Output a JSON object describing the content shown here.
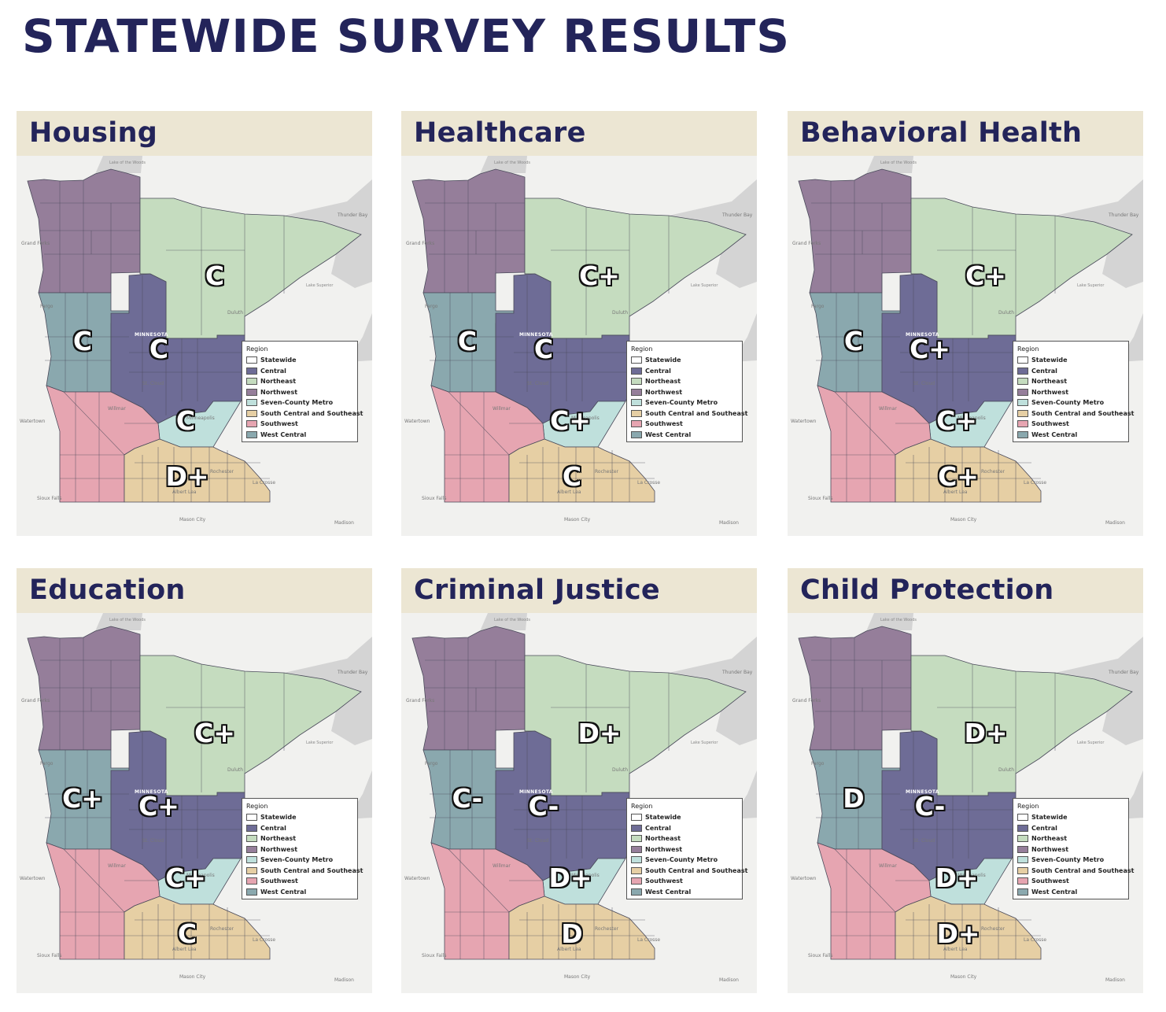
{
  "title": "STATEWIDE SURVEY RESULTS",
  "map_labels": {
    "lake_of_the_woods": "Lake of the Woods",
    "thunder_bay": "Thunder Bay",
    "grand_forks": "Grand Forks",
    "lake_superior": "Lake Superior",
    "fargo": "Fargo",
    "duluth": "Duluth",
    "minnesota": "MINNESOTA",
    "st_cloud": "St. Cloud",
    "willmar": "Willmar",
    "watertown": "Watertown",
    "minneapolis": "Minneapolis",
    "rochester": "Rochester",
    "la_crosse": "La Crosse",
    "albert_lea": "Albert Lea",
    "sioux_falls": "Sioux Falls",
    "mason_city": "Mason City",
    "madison": "Madison"
  },
  "legend": {
    "title": "Region",
    "items": [
      {
        "label": "Statewide",
        "color": "#ffffff"
      },
      {
        "label": "Central",
        "color": "#6e6c96"
      },
      {
        "label": "Northeast",
        "color": "#c5dcbf"
      },
      {
        "label": "Northwest",
        "color": "#957e9a"
      },
      {
        "label": "Seven-County Metro",
        "color": "#bfe0dc"
      },
      {
        "label": "South Central and Southeast",
        "color": "#e6cfa4"
      },
      {
        "label": "Southwest",
        "color": "#e6a5b1"
      },
      {
        "label": "West Central",
        "color": "#8aa8ae"
      }
    ]
  },
  "region_colors": {
    "northwest": "#957e9a",
    "northeast": "#c5dcbf",
    "west_central": "#8aa8ae",
    "central": "#6e6c96",
    "metro": "#bfe0dc",
    "southwest": "#e6a5b1",
    "south_central_southeast": "#e6cfa4",
    "title_color": "#23245a",
    "header_bg": "#ece6d3"
  },
  "panels": [
    {
      "title": "Housing",
      "grades": {
        "northeast": "C",
        "west_central": "C",
        "central": "C",
        "metro": "C",
        "south_central_southeast": "D+"
      }
    },
    {
      "title": "Healthcare",
      "grades": {
        "northeast": "C+",
        "west_central": "C",
        "central": "C",
        "metro": "C+",
        "south_central_southeast": "C"
      }
    },
    {
      "title": "Behavioral Health",
      "grades": {
        "northeast": "C+",
        "west_central": "C",
        "central": "C+",
        "metro": "C+",
        "south_central_southeast": "C+"
      }
    },
    {
      "title": "Education",
      "grades": {
        "northeast": "C+",
        "west_central": "C+",
        "central": "C+",
        "metro": "C+",
        "south_central_southeast": "C"
      }
    },
    {
      "title": "Criminal Justice",
      "grades": {
        "northeast": "D+",
        "west_central": "C-",
        "central": "C-",
        "metro": "D+",
        "south_central_southeast": "D"
      }
    },
    {
      "title": "Child Protection",
      "grades": {
        "northeast": "D+",
        "west_central": "D",
        "central": "C-",
        "metro": "D+",
        "south_central_southeast": "D+"
      }
    }
  ]
}
